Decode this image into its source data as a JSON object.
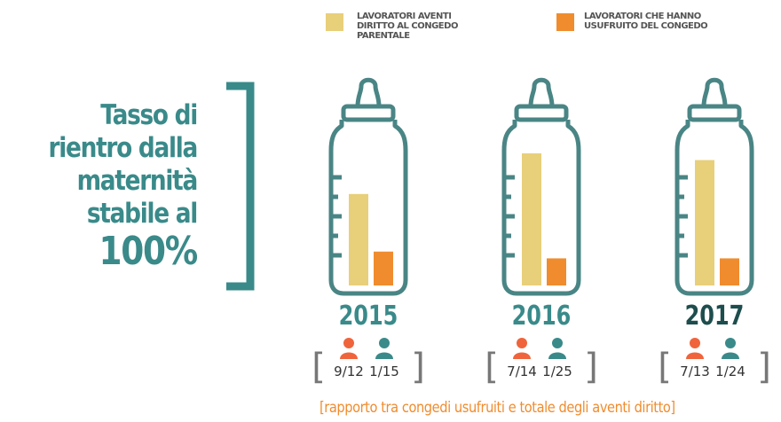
{
  "chart_data": {
    "type": "bar",
    "categories": [
      "2015",
      "2016",
      "2017"
    ],
    "series": [
      {
        "name": "LAVORATORI AVENTI DIRITTO AL CONGEDO PARENTALE",
        "color": "#e8cf7a",
        "values": [
          27,
          39,
          37
        ]
      },
      {
        "name": "LAVORATORI CHE HANNO USUFRUITO DEL CONGEDO",
        "color": "#f08c2e",
        "values": [
          10,
          8,
          8
        ]
      }
    ],
    "ylim": [
      0,
      45
    ],
    "headline": [
      "Tasso di",
      "rientro dalla",
      "maternità",
      "stabile al",
      "100%"
    ],
    "ratios": [
      {
        "female": "9/12",
        "male": "1/15"
      },
      {
        "female": "7/14",
        "male": "1/25"
      },
      {
        "female": "7/13",
        "male": "1/24"
      }
    ],
    "footnote": "[rapporto tra congedi usufruiti e totale degli aventi diritto]"
  }
}
